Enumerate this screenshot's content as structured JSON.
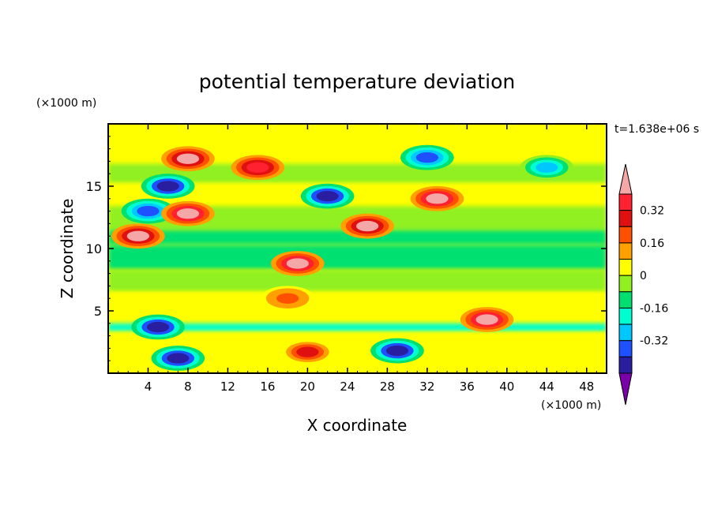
{
  "chart_data": {
    "type": "heatmap",
    "title": "potential temperature deviation",
    "time_label": "t=1.638e+06 s",
    "xlabel": "X coordinate",
    "ylabel": "Z coordinate",
    "x_unit": "(×1000 m)",
    "y_unit": "(×1000 m)",
    "xlim": [
      0,
      50
    ],
    "ylim": [
      0,
      20
    ],
    "x_ticks": [
      4,
      8,
      12,
      16,
      20,
      24,
      28,
      32,
      36,
      40,
      44,
      48
    ],
    "y_ticks": [
      5,
      10,
      15
    ],
    "colorbar": {
      "levels": [
        -0.48,
        -0.4,
        -0.32,
        -0.24,
        -0.16,
        -0.08,
        0,
        0.08,
        0.16,
        0.24,
        0.32,
        0.4
      ],
      "labeled_levels": [
        0.32,
        0.16,
        0,
        -0.16,
        -0.32
      ],
      "colors": [
        "#7a00a8",
        "#2a1ea0",
        "#1f50ff",
        "#00c8ff",
        "#00ffd0",
        "#00e070",
        "#90f020",
        "#ffff00",
        "#ffa000",
        "#ff5000",
        "#e01010",
        "#ff2030",
        "#f5a6a6"
      ],
      "extend": "both"
    },
    "features": [
      {
        "x": 8,
        "z": 17.2,
        "value": 0.4
      },
      {
        "x": 15,
        "z": 16.5,
        "value": 0.32
      },
      {
        "x": 32,
        "z": 17.3,
        "value": -0.4
      },
      {
        "x": 44,
        "z": 16.5,
        "value": -0.32
      },
      {
        "x": 6,
        "z": 15,
        "value": -0.48
      },
      {
        "x": 22,
        "z": 14.2,
        "value": -0.48
      },
      {
        "x": 33,
        "z": 14,
        "value": 0.45
      },
      {
        "x": 4,
        "z": 13,
        "value": -0.4
      },
      {
        "x": 8,
        "z": 12.8,
        "value": 0.45
      },
      {
        "x": 26,
        "z": 11.8,
        "value": 0.4
      },
      {
        "x": 3,
        "z": 11,
        "value": 0.4
      },
      {
        "x": 19,
        "z": 8.8,
        "value": 0.45
      },
      {
        "x": 18,
        "z": 6,
        "value": 0.2
      },
      {
        "x": 38,
        "z": 4.3,
        "value": 0.45
      },
      {
        "x": 5,
        "z": 3.7,
        "value": -0.45
      },
      {
        "x": 29,
        "z": 1.8,
        "value": -0.45
      },
      {
        "x": 20,
        "z": 1.7,
        "value": 0.3
      },
      {
        "x": 7,
        "z": 1.2,
        "value": -0.45
      }
    ]
  }
}
